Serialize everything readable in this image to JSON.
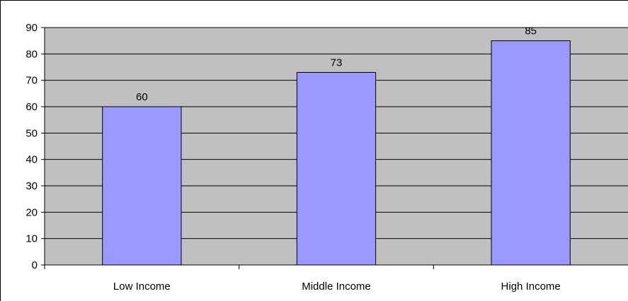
{
  "chart_data": {
    "type": "bar",
    "categories": [
      "Low Income",
      "Middle Income",
      "High Income"
    ],
    "values": [
      60,
      73,
      85
    ],
    "data_labels": [
      "60",
      "73",
      "85"
    ],
    "y_ticks": [
      "0",
      "10",
      "20",
      "30",
      "40",
      "50",
      "60",
      "70",
      "80",
      "90"
    ],
    "ylim": [
      0,
      90
    ],
    "grid": true,
    "legend": "none",
    "colors": {
      "bar_fill": "#9999FF",
      "bar_stroke": "#000000",
      "plot_background": "#C0C0C0",
      "gridline": "#000000"
    }
  }
}
